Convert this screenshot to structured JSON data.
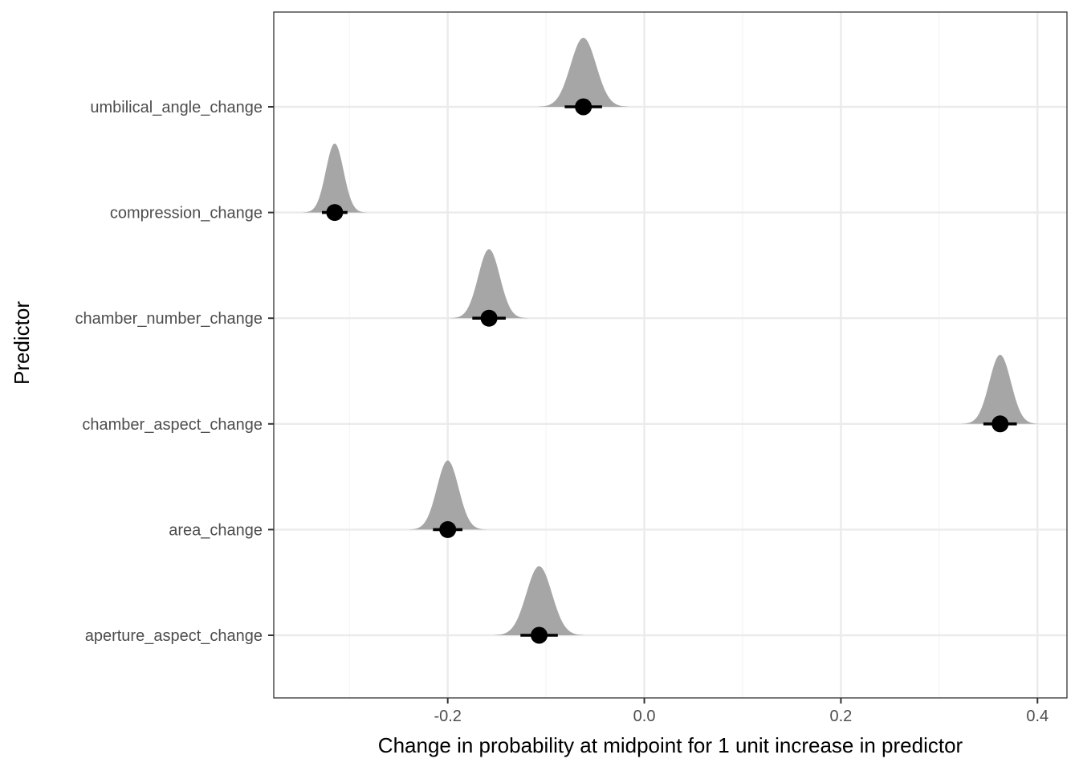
{
  "chart_data": {
    "type": "halfeye",
    "title": "",
    "xlabel": "Change in probability at midpoint for 1 unit increase in predictor",
    "ylabel": "Predictor",
    "xlim": [
      -0.377,
      0.43
    ],
    "x_ticks": [
      -0.2,
      0.0,
      0.2,
      0.4
    ],
    "x_tick_labels": [
      "-0.2",
      "0.0",
      "0.2",
      "0.4"
    ],
    "grid": true,
    "legend": "none",
    "colors": {
      "density": "#a6a6a6",
      "point": "#000000",
      "grid_major": "#ebebeb",
      "grid_minor": "#f4f4f4",
      "panel_border": "#333333"
    },
    "predictors": [
      {
        "name": "umbilical_angle_change",
        "point": -0.062,
        "ci": [
          -0.081,
          -0.043
        ],
        "density_sd": 0.013
      },
      {
        "name": "compression_change",
        "point": -0.315,
        "ci": [
          -0.328,
          -0.302
        ],
        "density_sd": 0.009
      },
      {
        "name": "chamber_number_change",
        "point": -0.158,
        "ci": [
          -0.175,
          -0.141
        ],
        "density_sd": 0.011
      },
      {
        "name": "chamber_aspect_change",
        "point": 0.362,
        "ci": [
          0.345,
          0.379
        ],
        "density_sd": 0.011
      },
      {
        "name": "area_change",
        "point": -0.2,
        "ci": [
          -0.215,
          -0.185
        ],
        "density_sd": 0.011
      },
      {
        "name": "aperture_aspect_change",
        "point": -0.107,
        "ci": [
          -0.126,
          -0.088
        ],
        "density_sd": 0.013
      }
    ]
  }
}
